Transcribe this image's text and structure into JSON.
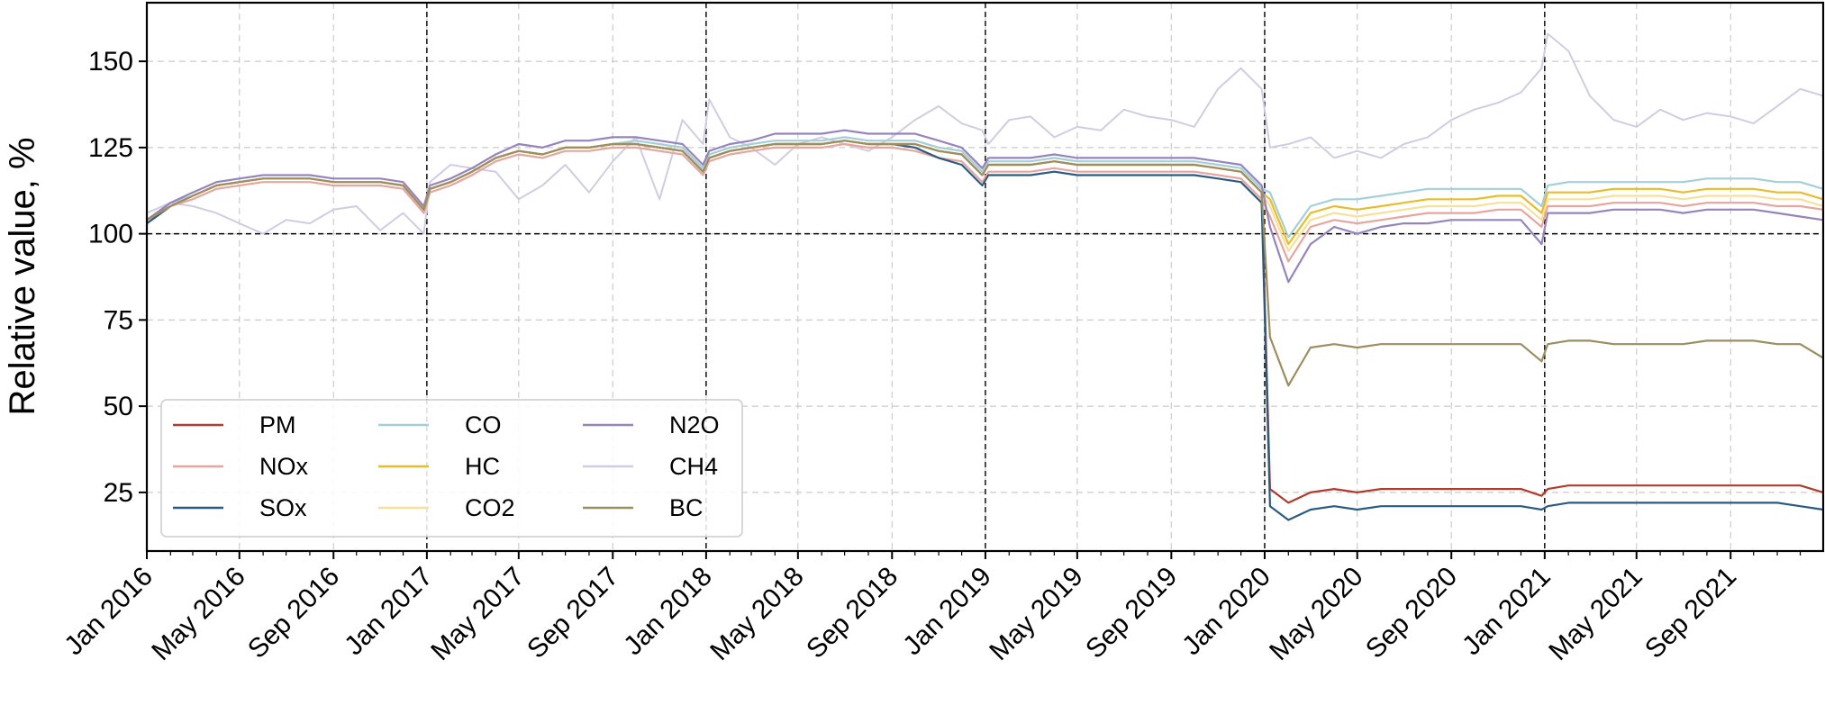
{
  "chart_data": {
    "type": "line",
    "title": "",
    "xlabel": "",
    "ylabel": "Relative value, %",
    "xlim": [
      "2016-01-01",
      "2021-12-31"
    ],
    "ylim": [
      8,
      167
    ],
    "yticks": [
      25,
      50,
      75,
      100,
      125,
      150
    ],
    "xticks": [
      {
        "date": "2016-01-01",
        "label": "Jan 2016"
      },
      {
        "date": "2016-05-01",
        "label": "May 2016"
      },
      {
        "date": "2016-09-01",
        "label": "Sep 2016"
      },
      {
        "date": "2017-01-01",
        "label": "Jan 2017"
      },
      {
        "date": "2017-05-01",
        "label": "May 2017"
      },
      {
        "date": "2017-09-01",
        "label": "Sep 2017"
      },
      {
        "date": "2018-01-01",
        "label": "Jan 2018"
      },
      {
        "date": "2018-05-01",
        "label": "May 2018"
      },
      {
        "date": "2018-09-01",
        "label": "Sep 2018"
      },
      {
        "date": "2019-01-01",
        "label": "Jan 2019"
      },
      {
        "date": "2019-05-01",
        "label": "May 2019"
      },
      {
        "date": "2019-09-01",
        "label": "Sep 2019"
      },
      {
        "date": "2020-01-01",
        "label": "Jan 2020"
      },
      {
        "date": "2020-05-01",
        "label": "May 2020"
      },
      {
        "date": "2020-09-01",
        "label": "Sep 2020"
      },
      {
        "date": "2021-01-01",
        "label": "Jan 2021"
      },
      {
        "date": "2021-05-01",
        "label": "May 2021"
      },
      {
        "date": "2021-09-01",
        "label": "Sep 2021"
      }
    ],
    "reference_lines": {
      "horizontal": [
        100
      ],
      "vertical": [
        "2017-01-01",
        "2018-01-01",
        "2019-01-01",
        "2020-01-01",
        "2021-01-01"
      ]
    },
    "grid": true,
    "legend_position": "lower-left",
    "legend_columns": 3,
    "x": [
      "2016-01-01",
      "2016-02-01",
      "2016-03-01",
      "2016-04-01",
      "2016-05-01",
      "2016-06-01",
      "2016-07-01",
      "2016-08-01",
      "2016-09-01",
      "2016-10-01",
      "2016-11-01",
      "2016-12-01",
      "2016-12-28",
      "2017-01-05",
      "2017-02-01",
      "2017-03-01",
      "2017-04-01",
      "2017-05-01",
      "2017-06-01",
      "2017-07-01",
      "2017-08-01",
      "2017-09-01",
      "2017-10-01",
      "2017-11-01",
      "2017-12-01",
      "2017-12-28",
      "2018-01-05",
      "2018-02-01",
      "2018-03-01",
      "2018-04-01",
      "2018-05-01",
      "2018-06-01",
      "2018-07-01",
      "2018-08-01",
      "2018-09-01",
      "2018-10-01",
      "2018-11-01",
      "2018-12-01",
      "2018-12-28",
      "2019-01-05",
      "2019-02-01",
      "2019-03-01",
      "2019-04-01",
      "2019-05-01",
      "2019-06-01",
      "2019-07-01",
      "2019-08-01",
      "2019-09-01",
      "2019-10-01",
      "2019-11-01",
      "2019-12-01",
      "2019-12-28",
      "2020-01-08",
      "2020-02-01",
      "2020-03-01",
      "2020-04-01",
      "2020-05-01",
      "2020-06-01",
      "2020-07-01",
      "2020-08-01",
      "2020-09-01",
      "2020-10-01",
      "2020-11-01",
      "2020-12-01",
      "2020-12-28",
      "2021-01-05",
      "2021-02-01",
      "2021-03-01",
      "2021-04-01",
      "2021-05-01",
      "2021-06-01",
      "2021-07-01",
      "2021-08-01",
      "2021-09-01",
      "2021-10-01",
      "2021-11-01",
      "2021-12-01",
      "2021-12-31"
    ],
    "series": [
      {
        "name": "PM",
        "color": "#b13c2e",
        "values": [
          103,
          108,
          111,
          114,
          115,
          116,
          116,
          116,
          115,
          115,
          115,
          114,
          107,
          113,
          115,
          118,
          122,
          124,
          123,
          125,
          125,
          126,
          126,
          125,
          124,
          118,
          122,
          124,
          125,
          126,
          126,
          126,
          127,
          126,
          126,
          126,
          124,
          123,
          117,
          120,
          120,
          120,
          121,
          120,
          120,
          120,
          120,
          120,
          120,
          119,
          118,
          112,
          26,
          22,
          25,
          26,
          25,
          26,
          26,
          26,
          26,
          26,
          26,
          26,
          24,
          26,
          27,
          27,
          27,
          27,
          27,
          27,
          27,
          27,
          27,
          27,
          27,
          25
        ]
      },
      {
        "name": "NOx",
        "color": "#e6a6a0",
        "values": [
          103,
          108,
          110,
          113,
          114,
          115,
          115,
          115,
          114,
          114,
          114,
          113,
          106,
          112,
          114,
          117,
          121,
          123,
          122,
          124,
          124,
          125,
          125,
          124,
          123,
          117,
          121,
          123,
          124,
          125,
          125,
          125,
          126,
          125,
          125,
          124,
          122,
          121,
          115,
          118,
          118,
          118,
          119,
          118,
          118,
          118,
          118,
          118,
          118,
          117,
          116,
          110,
          105,
          92,
          102,
          104,
          103,
          104,
          105,
          106,
          106,
          106,
          107,
          107,
          102,
          108,
          108,
          108,
          109,
          109,
          109,
          108,
          109,
          109,
          109,
          108,
          108,
          107
        ]
      },
      {
        "name": "SOx",
        "color": "#2a5b80",
        "values": [
          103,
          108,
          111,
          114,
          115,
          116,
          116,
          116,
          115,
          115,
          115,
          114,
          107,
          113,
          115,
          118,
          122,
          124,
          123,
          125,
          125,
          126,
          126,
          125,
          124,
          118,
          122,
          124,
          125,
          126,
          126,
          126,
          127,
          126,
          126,
          125,
          122,
          120,
          114,
          117,
          117,
          117,
          118,
          117,
          117,
          117,
          117,
          117,
          117,
          116,
          115,
          109,
          21,
          17,
          20,
          21,
          20,
          21,
          21,
          21,
          21,
          21,
          21,
          21,
          20,
          21,
          22,
          22,
          22,
          22,
          22,
          22,
          22,
          22,
          22,
          22,
          21,
          20
        ]
      },
      {
        "name": "CO",
        "color": "#a4cfd9",
        "values": [
          104,
          109,
          111,
          114,
          115,
          116,
          116,
          116,
          115,
          115,
          115,
          114,
          107,
          113,
          115,
          118,
          122,
          124,
          123,
          125,
          125,
          126,
          127,
          126,
          125,
          119,
          123,
          125,
          126,
          127,
          127,
          127,
          128,
          127,
          127,
          127,
          125,
          124,
          118,
          121,
          121,
          121,
          122,
          121,
          121,
          121,
          121,
          121,
          121,
          120,
          119,
          113,
          112,
          99,
          108,
          110,
          110,
          111,
          112,
          113,
          113,
          113,
          113,
          113,
          108,
          114,
          115,
          115,
          115,
          115,
          115,
          115,
          116,
          116,
          116,
          115,
          115,
          113
        ]
      },
      {
        "name": "HC",
        "color": "#e8bd2b",
        "values": [
          104,
          108,
          111,
          114,
          115,
          116,
          116,
          116,
          115,
          115,
          115,
          114,
          107,
          113,
          115,
          118,
          122,
          124,
          123,
          125,
          125,
          126,
          126,
          125,
          124,
          118,
          122,
          124,
          125,
          126,
          126,
          126,
          127,
          126,
          126,
          126,
          124,
          123,
          117,
          120,
          120,
          120,
          121,
          120,
          120,
          120,
          120,
          120,
          120,
          119,
          118,
          112,
          110,
          97,
          106,
          108,
          107,
          108,
          109,
          110,
          110,
          110,
          111,
          111,
          106,
          112,
          112,
          112,
          113,
          113,
          113,
          112,
          113,
          113,
          113,
          112,
          112,
          110
        ]
      },
      {
        "name": "CO2",
        "color": "#f7e09a",
        "values": [
          104,
          108,
          111,
          114,
          115,
          116,
          116,
          116,
          115,
          115,
          115,
          114,
          107,
          113,
          115,
          118,
          122,
          124,
          123,
          125,
          125,
          126,
          126,
          125,
          124,
          118,
          122,
          124,
          125,
          126,
          126,
          126,
          127,
          126,
          126,
          126,
          124,
          123,
          117,
          120,
          120,
          120,
          121,
          120,
          120,
          120,
          120,
          120,
          120,
          119,
          118,
          112,
          108,
          95,
          104,
          106,
          105,
          106,
          107,
          108,
          108,
          108,
          109,
          109,
          104,
          110,
          110,
          110,
          111,
          111,
          111,
          110,
          111,
          111,
          111,
          110,
          110,
          108
        ]
      },
      {
        "name": "N2O",
        "color": "#9684bd",
        "values": [
          104,
          109,
          112,
          115,
          116,
          117,
          117,
          117,
          116,
          116,
          116,
          115,
          108,
          114,
          116,
          119,
          123,
          126,
          125,
          127,
          127,
          128,
          128,
          127,
          126,
          120,
          124,
          126,
          127,
          129,
          129,
          129,
          130,
          129,
          129,
          129,
          127,
          125,
          119,
          122,
          122,
          122,
          123,
          122,
          122,
          122,
          122,
          122,
          122,
          121,
          120,
          114,
          102,
          86,
          97,
          102,
          100,
          102,
          103,
          103,
          104,
          104,
          104,
          104,
          97,
          106,
          106,
          106,
          107,
          107,
          107,
          106,
          107,
          107,
          107,
          106,
          105,
          104
        ]
      },
      {
        "name": "CH4",
        "color": "#d2cce3",
        "values": [
          106,
          109,
          108,
          106,
          103,
          100,
          104,
          103,
          107,
          108,
          101,
          106,
          100,
          115,
          120,
          119,
          118,
          110,
          114,
          120,
          112,
          121,
          128,
          110,
          133,
          126,
          139,
          128,
          125,
          120,
          126,
          128,
          126,
          124,
          128,
          133,
          137,
          132,
          130,
          126,
          133,
          134,
          128,
          131,
          130,
          136,
          134,
          133,
          131,
          142,
          148,
          142,
          125,
          126,
          128,
          122,
          124,
          122,
          126,
          128,
          133,
          136,
          138,
          141,
          148,
          158,
          153,
          140,
          133,
          131,
          136,
          133,
          135,
          134,
          132,
          137,
          142,
          140
        ]
      },
      {
        "name": "BC",
        "color": "#9c8e60",
        "values": [
          104,
          108,
          111,
          114,
          115,
          116,
          116,
          116,
          115,
          115,
          115,
          114,
          107,
          113,
          115,
          118,
          122,
          124,
          123,
          125,
          125,
          126,
          126,
          125,
          124,
          118,
          122,
          124,
          125,
          126,
          126,
          126,
          127,
          126,
          126,
          126,
          124,
          123,
          117,
          120,
          120,
          120,
          121,
          120,
          120,
          120,
          120,
          120,
          120,
          119,
          118,
          112,
          70,
          56,
          67,
          68,
          67,
          68,
          68,
          68,
          68,
          68,
          68,
          68,
          63,
          68,
          69,
          69,
          68,
          68,
          68,
          68,
          69,
          69,
          69,
          68,
          68,
          64
        ]
      }
    ]
  }
}
